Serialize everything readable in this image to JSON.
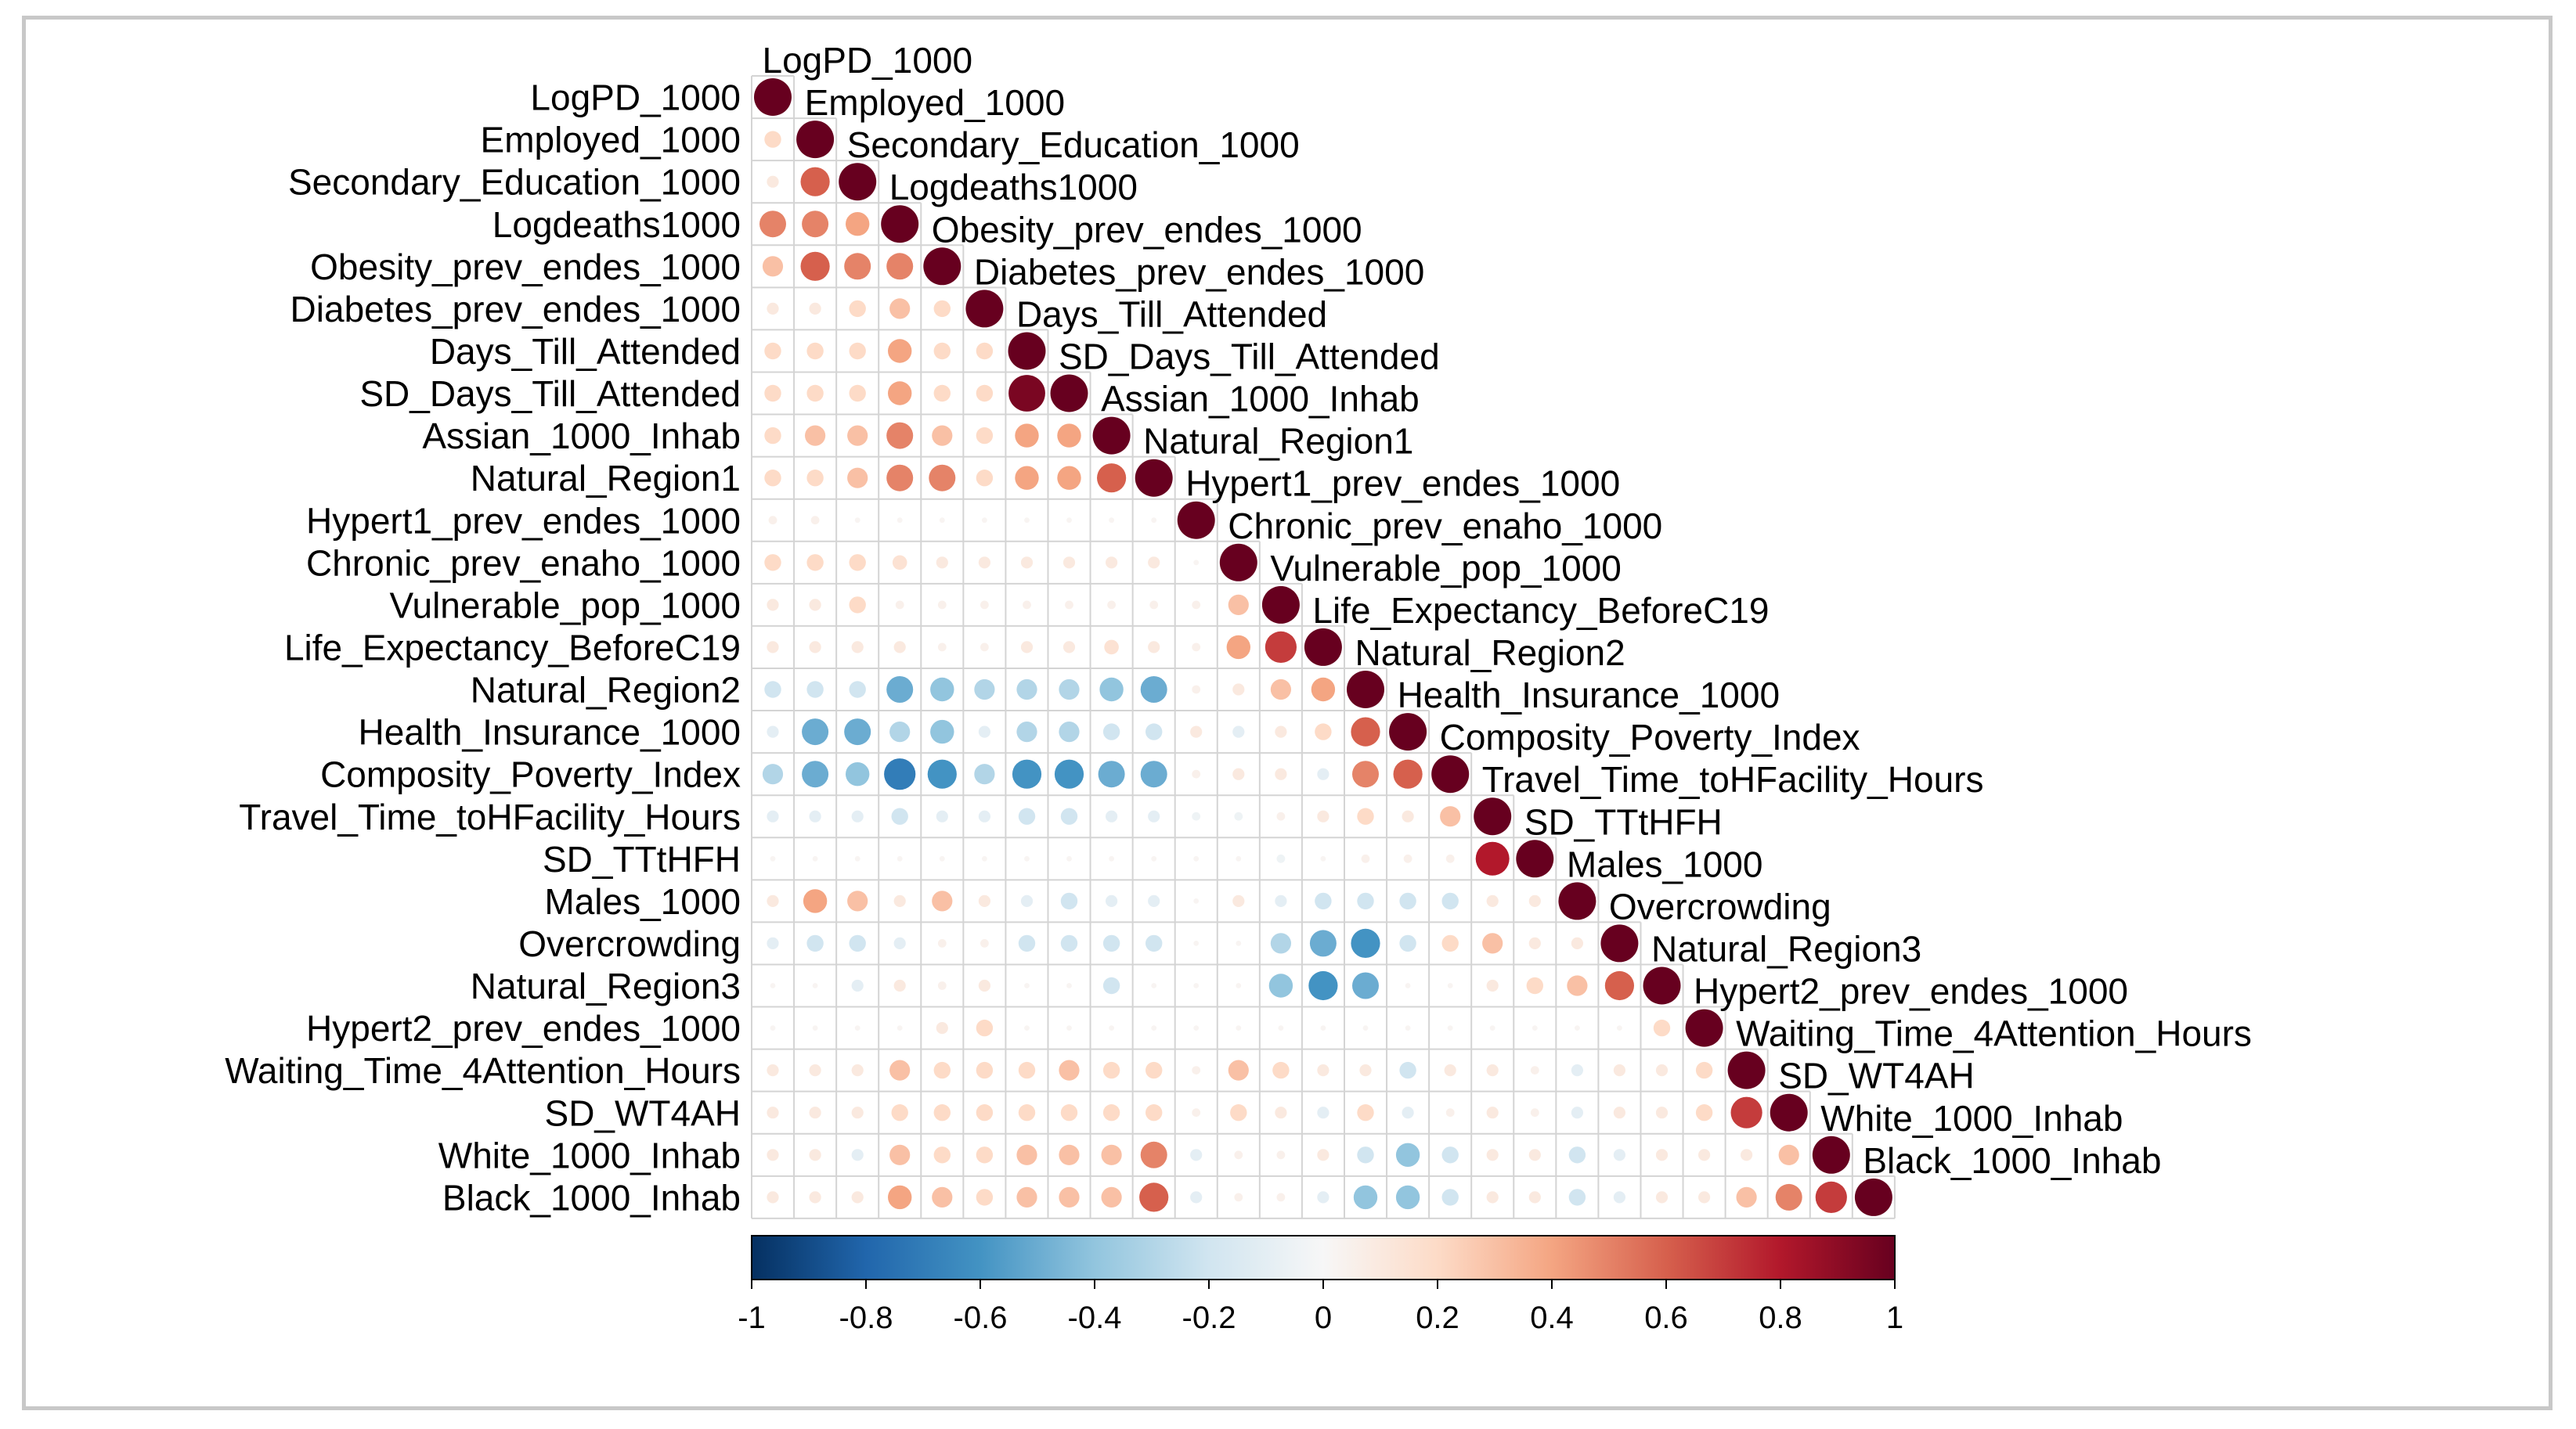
{
  "chart_data": {
    "type": "heatmap",
    "variables": [
      "LogPD_1000",
      "Employed_1000",
      "Secondary_Education_1000",
      "Logdeaths1000",
      "Obesity_prev_endes_1000",
      "Diabetes_prev_endes_1000",
      "Days_Till_Attended",
      "SD_Days_Till_Attended",
      "Assian_1000_Inhab",
      "Natural_Region1",
      "Hypert1_prev_endes_1000",
      "Chronic_prev_enaho_1000",
      "Vulnerable_pop_1000",
      "Life_Expectancy_BeforeC19",
      "Natural_Region2",
      "Health_Insurance_1000",
      "Composity_Poverty_Index",
      "Travel_Time_toHFacility_Hours",
      "SD_TTtHFH",
      "Males_1000",
      "Overcrowding",
      "Natural_Region3",
      "Hypert2_prev_endes_1000",
      "Waiting_Time_4Attention_Hours",
      "SD_WT4AH",
      "White_1000_Inhab",
      "Black_1000_Inhab"
    ],
    "matrix_lower": [
      [
        1.0
      ],
      [
        0.2,
        1.0
      ],
      [
        0.1,
        0.6,
        1.0
      ],
      [
        0.5,
        0.5,
        0.4,
        1.0
      ],
      [
        0.3,
        0.6,
        0.5,
        0.5,
        1.0
      ],
      [
        0.1,
        0.1,
        0.2,
        0.3,
        0.2,
        1.0
      ],
      [
        0.2,
        0.2,
        0.2,
        0.4,
        0.2,
        0.2,
        1.0
      ],
      [
        0.2,
        0.2,
        0.2,
        0.4,
        0.2,
        0.2,
        0.95,
        1.0
      ],
      [
        0.2,
        0.3,
        0.3,
        0.5,
        0.3,
        0.2,
        0.4,
        0.4,
        1.0
      ],
      [
        0.2,
        0.2,
        0.3,
        0.5,
        0.5,
        0.2,
        0.4,
        0.4,
        0.6,
        1.0
      ],
      [
        0.05,
        0.05,
        0.02,
        0.02,
        0.02,
        0.02,
        0.02,
        0.02,
        0.02,
        0.02,
        1.0
      ],
      [
        0.2,
        0.2,
        0.2,
        0.15,
        0.1,
        0.1,
        0.1,
        0.1,
        0.1,
        0.1,
        0.02,
        1.0
      ],
      [
        0.1,
        0.1,
        0.2,
        0.05,
        0.05,
        0.05,
        0.05,
        0.05,
        0.05,
        0.05,
        0.05,
        0.3,
        1.0
      ],
      [
        0.1,
        0.1,
        0.1,
        0.1,
        0.05,
        0.05,
        0.1,
        0.1,
        0.15,
        0.1,
        0.05,
        0.4,
        0.7,
        1.0
      ],
      [
        -0.2,
        -0.2,
        -0.2,
        -0.5,
        -0.4,
        -0.3,
        -0.3,
        -0.3,
        -0.4,
        -0.5,
        0.05,
        0.1,
        0.3,
        0.4,
        1.0
      ],
      [
        -0.1,
        -0.5,
        -0.5,
        -0.3,
        -0.4,
        -0.1,
        -0.3,
        -0.3,
        -0.2,
        -0.2,
        0.1,
        -0.1,
        0.1,
        0.2,
        0.6,
        1.0
      ],
      [
        -0.3,
        -0.5,
        -0.4,
        -0.7,
        -0.6,
        -0.3,
        -0.6,
        -0.6,
        -0.5,
        -0.5,
        0.05,
        0.1,
        0.1,
        -0.1,
        0.5,
        0.6,
        1.0
      ],
      [
        -0.1,
        -0.1,
        -0.1,
        -0.2,
        -0.1,
        -0.1,
        -0.2,
        -0.2,
        -0.1,
        -0.1,
        -0.05,
        -0.05,
        0.05,
        0.1,
        0.2,
        0.1,
        0.3,
        1.0
      ],
      [
        0.02,
        0.02,
        0.02,
        0.02,
        0.02,
        0.02,
        0.02,
        0.02,
        0.02,
        0.02,
        0.02,
        0.02,
        -0.05,
        0.02,
        0.05,
        0.05,
        0.05,
        0.8,
        1.0
      ],
      [
        0.1,
        0.4,
        0.3,
        0.1,
        0.3,
        0.1,
        -0.1,
        -0.2,
        -0.1,
        -0.1,
        0.02,
        0.1,
        -0.1,
        -0.2,
        -0.2,
        -0.2,
        -0.2,
        0.1,
        0.1,
        1.0
      ],
      [
        -0.1,
        -0.2,
        -0.2,
        -0.1,
        0.05,
        0.05,
        -0.2,
        -0.2,
        -0.2,
        -0.2,
        0.02,
        0.02,
        -0.3,
        -0.5,
        -0.6,
        -0.2,
        0.2,
        0.3,
        0.1,
        0.1,
        1.0
      ],
      [
        0.02,
        0.02,
        -0.1,
        0.1,
        0.05,
        0.1,
        0.02,
        0.02,
        -0.2,
        0.02,
        0.02,
        0.02,
        -0.4,
        -0.6,
        -0.5,
        0.02,
        0.02,
        0.1,
        0.2,
        0.3,
        0.6,
        1.0
      ],
      [
        0.02,
        0.02,
        0.02,
        0.02,
        0.1,
        0.2,
        0.02,
        0.02,
        0.02,
        0.02,
        0.02,
        0.02,
        0.02,
        0.02,
        0.02,
        0.02,
        0.02,
        0.02,
        0.02,
        0.02,
        0.02,
        0.2,
        1.0
      ],
      [
        0.1,
        0.1,
        0.1,
        0.3,
        0.2,
        0.2,
        0.2,
        0.3,
        0.2,
        0.2,
        0.05,
        0.3,
        0.2,
        0.1,
        0.1,
        -0.2,
        0.1,
        0.1,
        0.05,
        -0.1,
        0.1,
        0.1,
        0.2,
        1.0
      ],
      [
        0.1,
        0.1,
        0.1,
        0.2,
        0.2,
        0.2,
        0.2,
        0.2,
        0.2,
        0.2,
        0.05,
        0.2,
        0.1,
        -0.1,
        0.2,
        -0.1,
        0.05,
        0.1,
        0.05,
        -0.1,
        0.1,
        0.1,
        0.2,
        0.7,
        1.0
      ],
      [
        0.1,
        0.1,
        -0.1,
        0.3,
        0.2,
        0.2,
        0.3,
        0.3,
        0.3,
        0.5,
        -0.1,
        0.05,
        0.05,
        0.1,
        -0.2,
        -0.4,
        -0.2,
        0.1,
        0.1,
        -0.2,
        -0.1,
        0.1,
        0.1,
        0.1,
        0.3,
        1.0
      ],
      [
        0.1,
        0.1,
        0.1,
        0.4,
        0.3,
        0.2,
        0.3,
        0.3,
        0.3,
        0.6,
        -0.1,
        0.05,
        0.05,
        -0.1,
        -0.4,
        -0.4,
        -0.2,
        0.1,
        0.1,
        -0.2,
        -0.1,
        0.1,
        0.1,
        0.3,
        0.5,
        0.7,
        1.0
      ]
    ],
    "colorbar": {
      "ticks": [
        "-1",
        "-0.8",
        "-0.6",
        "-0.4",
        "-0.2",
        "0",
        "0.2",
        "0.4",
        "0.6",
        "0.8",
        "1"
      ],
      "range": [
        -1,
        1
      ]
    },
    "colors": [
      "#053061",
      "#2166ac",
      "#4393c3",
      "#92c5de",
      "#d1e5f0",
      "#f7f7f7",
      "#fddbc7",
      "#f4a582",
      "#d6604d",
      "#b2182b",
      "#67001f"
    ],
    "grid_color": "#d4d4d4"
  }
}
